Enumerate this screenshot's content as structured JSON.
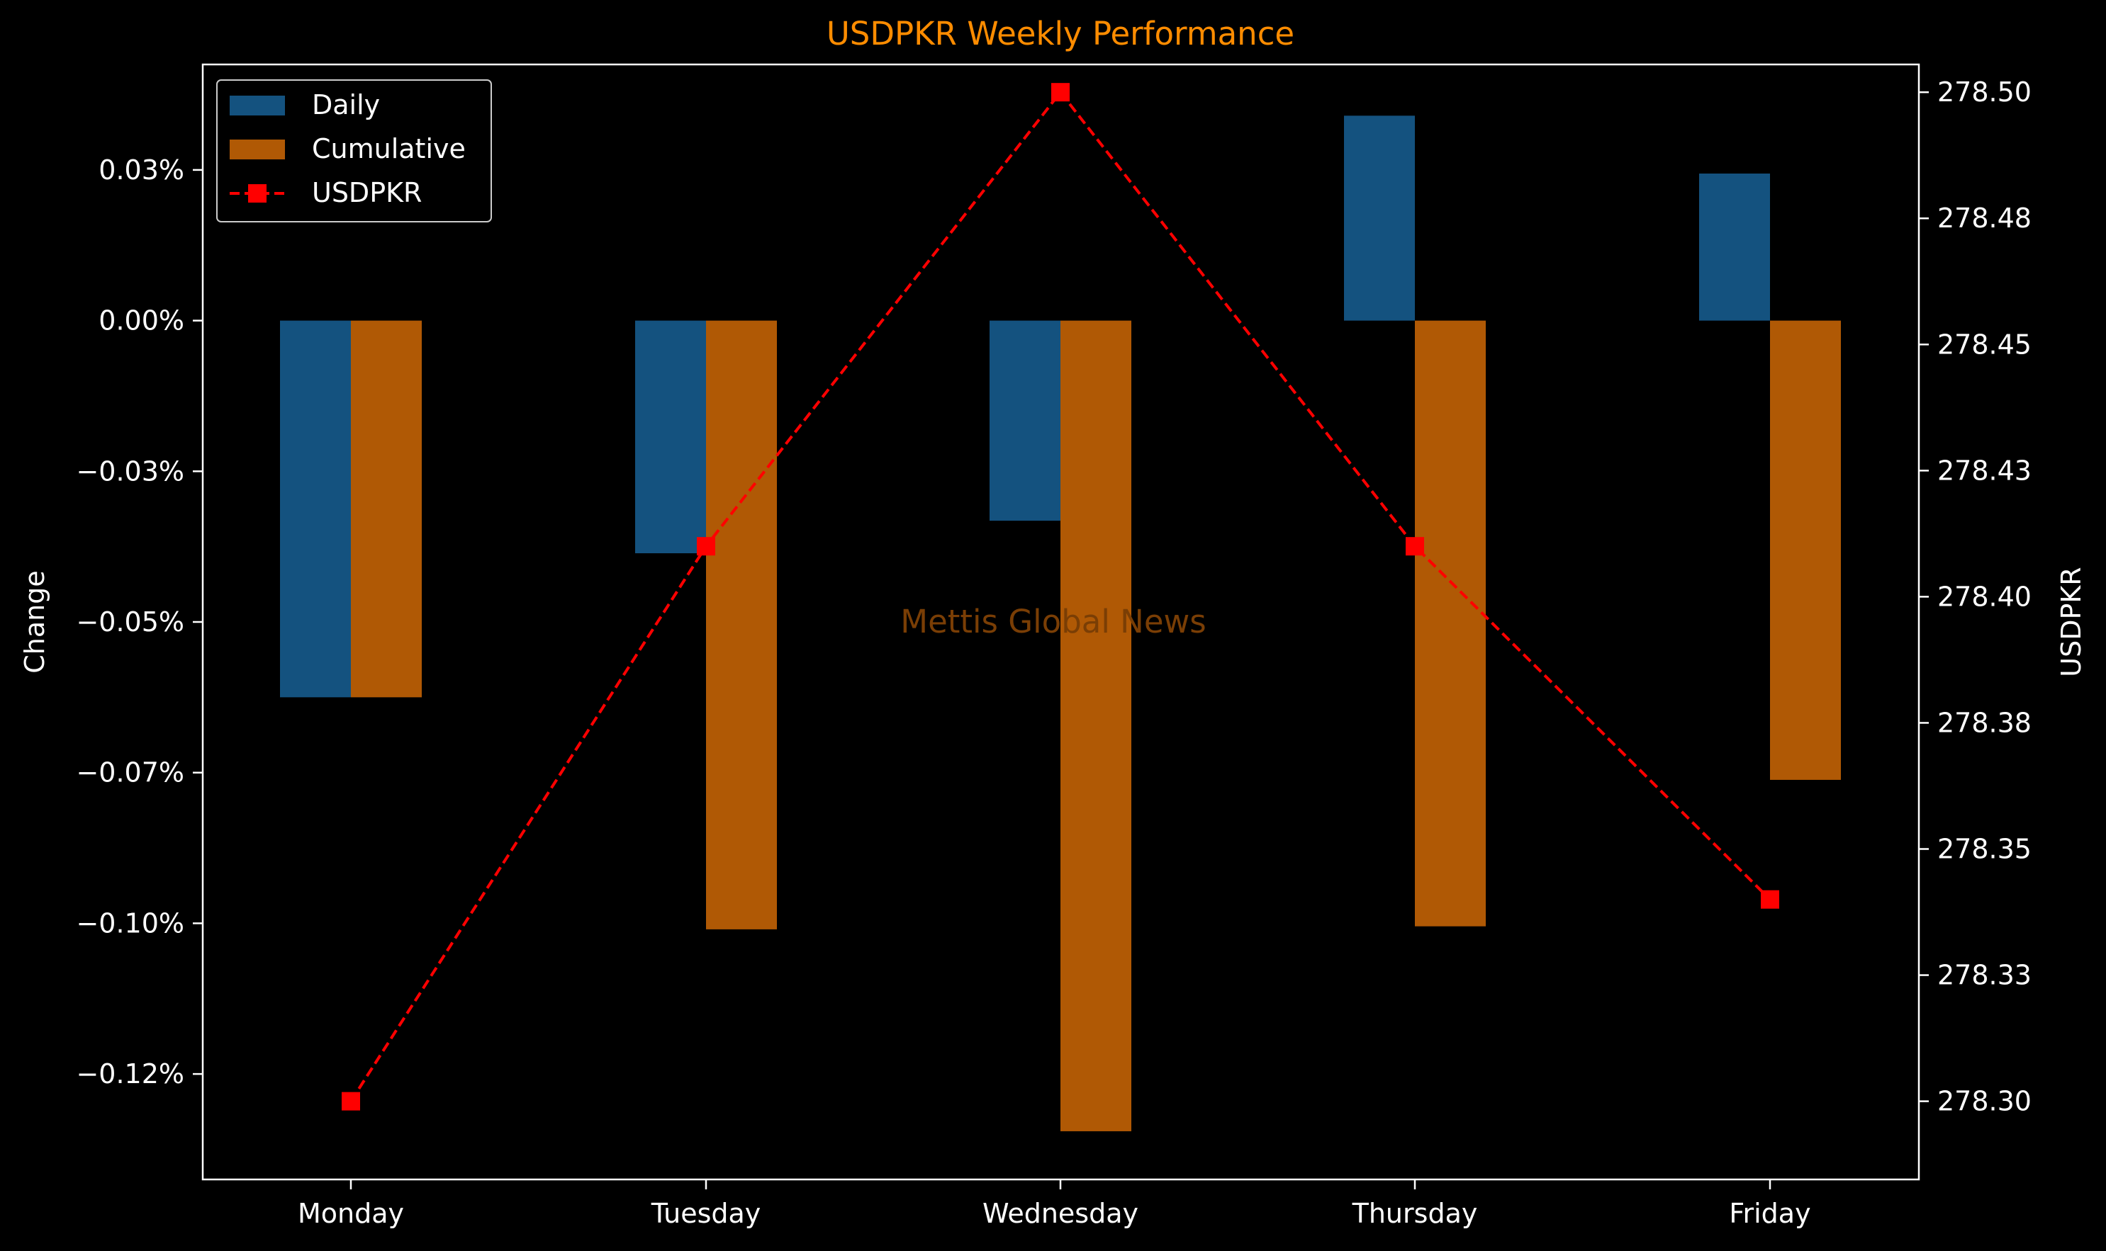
{
  "chart_data": {
    "type": "bar",
    "title": "USDPKR Weekly Performance",
    "watermark": "Mettis Global News",
    "categories": [
      "Monday",
      "Tuesday",
      "Wednesday",
      "Thursday",
      "Friday"
    ],
    "series": [
      {
        "name": "Daily",
        "type": "bar",
        "axis": "left",
        "color": "#14527f",
        "values": [
          -0.0625,
          -0.0386,
          -0.0332,
          0.034,
          0.0244
        ]
      },
      {
        "name": "Cumulative",
        "type": "bar",
        "axis": "left",
        "color": "#b05905",
        "values": [
          -0.0625,
          -0.101,
          -0.1345,
          -0.1005,
          -0.0762
        ]
      }
    ],
    "line_series": {
      "name": "USDPKR",
      "axis": "right",
      "color": "#ff0000",
      "style": "dashed",
      "marker": "square",
      "values": [
        278.3,
        278.41,
        278.5,
        278.41,
        278.34
      ]
    },
    "ylabel": "Change",
    "y2label": "USDPKR",
    "ylim": [
      -0.1425,
      0.0425
    ],
    "y2lim": [
      278.2845,
      278.5055
    ],
    "yticks": [
      0.025,
      0.0,
      -0.025,
      -0.05,
      -0.075,
      -0.1,
      -0.125
    ],
    "yticklabels": [
      "0.03%",
      "0.00%",
      "−0.03%",
      "−0.05%",
      "−0.07%",
      "−0.10%",
      "−0.12%"
    ],
    "y2ticks": [
      278.5,
      278.475,
      278.45,
      278.425,
      278.4,
      278.375,
      278.35,
      278.325,
      278.3
    ],
    "y2ticklabels": [
      "278.50",
      "278.48",
      "278.45",
      "278.43",
      "278.40",
      "278.38",
      "278.35",
      "278.33",
      "278.30"
    ],
    "grid": false,
    "legend": "top-left",
    "colors": {
      "background": "#000000",
      "axes": "#ffffff",
      "text": "#ffffff",
      "title": "#ff8c00",
      "watermark": "#7a3e05"
    }
  }
}
